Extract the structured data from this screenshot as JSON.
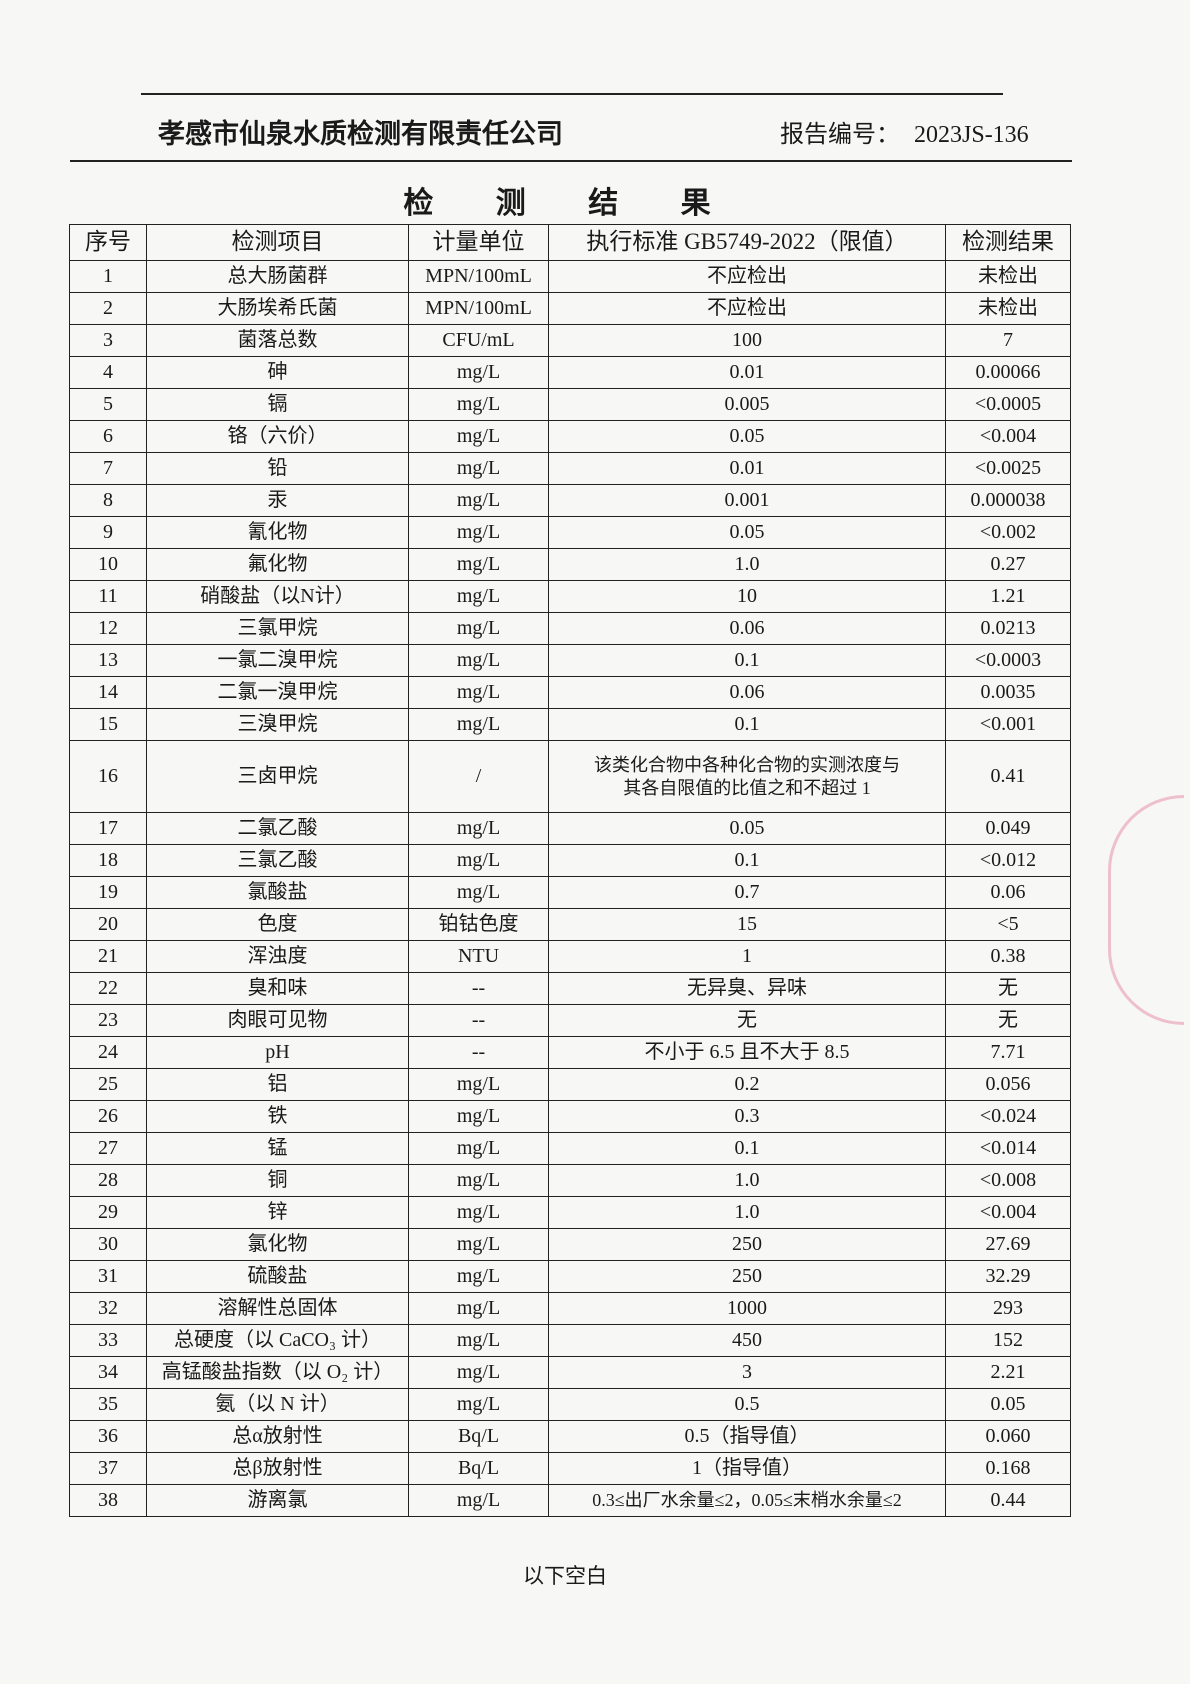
{
  "header": {
    "company": "孝感市仙泉水质检测有限责任公司",
    "report_no_label": "报告编号：",
    "report_no": "2023JS-136"
  },
  "title": "检 测 结 果",
  "table": {
    "columns": [
      "序号",
      "检测项目",
      "计量单位",
      "执行标准 GB5749-2022（限值）",
      "检测结果"
    ],
    "rows": [
      [
        "1",
        "总大肠菌群",
        "MPN/100mL",
        "不应检出",
        "未检出"
      ],
      [
        "2",
        "大肠埃希氏菌",
        "MPN/100mL",
        "不应检出",
        "未检出"
      ],
      [
        "3",
        "菌落总数",
        "CFU/mL",
        "100",
        "7"
      ],
      [
        "4",
        "砷",
        "mg/L",
        "0.01",
        "0.00066"
      ],
      [
        "5",
        "镉",
        "mg/L",
        "0.005",
        "<0.0005"
      ],
      [
        "6",
        "铬（六价）",
        "mg/L",
        "0.05",
        "<0.004"
      ],
      [
        "7",
        "铅",
        "mg/L",
        "0.01",
        "<0.0025"
      ],
      [
        "8",
        "汞",
        "mg/L",
        "0.001",
        "0.000038"
      ],
      [
        "9",
        "氰化物",
        "mg/L",
        "0.05",
        "<0.002"
      ],
      [
        "10",
        "氟化物",
        "mg/L",
        "1.0",
        "0.27"
      ],
      [
        "11",
        "硝酸盐（以N计）",
        "mg/L",
        "10",
        "1.21"
      ],
      [
        "12",
        "三氯甲烷",
        "mg/L",
        "0.06",
        "0.0213"
      ],
      [
        "13",
        "一氯二溴甲烷",
        "mg/L",
        "0.1",
        "<0.0003"
      ],
      [
        "14",
        "二氯一溴甲烷",
        "mg/L",
        "0.06",
        "0.0035"
      ],
      [
        "15",
        "三溴甲烷",
        "mg/L",
        "0.1",
        "<0.001"
      ],
      [
        "16",
        "三卤甲烷",
        "/",
        "该类化合物中各种化合物的实测浓度与\n其各自限值的比值之和不超过 1",
        "0.41"
      ],
      [
        "17",
        "二氯乙酸",
        "mg/L",
        "0.05",
        "0.049"
      ],
      [
        "18",
        "三氯乙酸",
        "mg/L",
        "0.1",
        "<0.012"
      ],
      [
        "19",
        "氯酸盐",
        "mg/L",
        "0.7",
        "0.06"
      ],
      [
        "20",
        "色度",
        "铂钴色度",
        "15",
        "<5"
      ],
      [
        "21",
        "浑浊度",
        "NTU",
        "1",
        "0.38"
      ],
      [
        "22",
        "臭和味",
        "--",
        "无异臭、异味",
        "无"
      ],
      [
        "23",
        "肉眼可见物",
        "--",
        "无",
        "无"
      ],
      [
        "24",
        "pH",
        "--",
        "不小于 6.5 且不大于 8.5",
        "7.71"
      ],
      [
        "25",
        "铝",
        "mg/L",
        "0.2",
        "0.056"
      ],
      [
        "26",
        "铁",
        "mg/L",
        "0.3",
        "<0.024"
      ],
      [
        "27",
        "锰",
        "mg/L",
        "0.1",
        "<0.014"
      ],
      [
        "28",
        "铜",
        "mg/L",
        "1.0",
        "<0.008"
      ],
      [
        "29",
        "锌",
        "mg/L",
        "1.0",
        "<0.004"
      ],
      [
        "30",
        "氯化物",
        "mg/L",
        "250",
        "27.69"
      ],
      [
        "31",
        "硫酸盐",
        "mg/L",
        "250",
        "32.29"
      ],
      [
        "32",
        "溶解性总固体",
        "mg/L",
        "1000",
        "293"
      ],
      [
        "33",
        "总硬度（以 CaCO₃ 计）",
        "mg/L",
        "450",
        "152"
      ],
      [
        "34",
        "高锰酸盐指数（以 O₂ 计）",
        "mg/L",
        "3",
        "2.21"
      ],
      [
        "35",
        "氨（以 N 计）",
        "mg/L",
        "0.5",
        "0.05"
      ],
      [
        "36",
        "总α放射性",
        "Bq/L",
        "0.5（指导值）",
        "0.060"
      ],
      [
        "37",
        "总β放射性",
        "Bq/L",
        "1（指导值）",
        "0.168"
      ],
      [
        "38",
        "游离氯",
        "mg/L",
        "0.3≤出厂水余量≤2，0.05≤末梢水余量≤2",
        "0.44"
      ]
    ]
  },
  "footer_note": "以下空白",
  "colors": {
    "stamp": "#dc5a82"
  }
}
